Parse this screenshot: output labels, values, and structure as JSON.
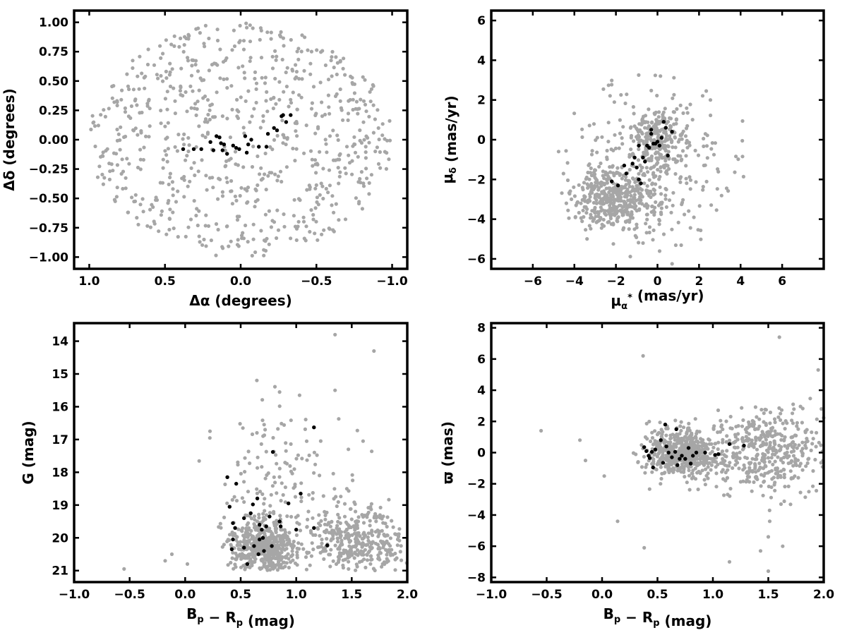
{
  "colors": {
    "background": "#ffffff",
    "field_points": "#a6a6a6",
    "members": "#000000",
    "axes": "#000000"
  },
  "chart_data": [
    {
      "id": "sky",
      "type": "scatter",
      "xlabel": "Δα (degrees)",
      "ylabel": "Δδ (degrees)",
      "xlim": [
        1.1,
        -1.1
      ],
      "ylim": [
        -1.1,
        1.1
      ],
      "x_inverted": true,
      "xticks": [
        1.0,
        0.5,
        0.0,
        -0.5,
        -1.0
      ],
      "xtick_labels": [
        "1.0",
        "0.5",
        "0.0",
        "−0.5",
        "−1.0"
      ],
      "yticks": [
        -1.0,
        -0.75,
        -0.5,
        -0.25,
        0.0,
        0.25,
        0.5,
        0.75,
        1.0
      ],
      "ytick_labels": [
        "−1.00",
        "−0.75",
        "−0.50",
        "−0.25",
        "0.00",
        "0.25",
        "0.50",
        "0.75",
        "1.00"
      ],
      "grid": false,
      "background_field": {
        "color": "#a6a6a6",
        "count": 750,
        "distribution": "uniform disk",
        "center": [
          0.0,
          0.0
        ],
        "radius": 1.0
      },
      "members": {
        "color": "#000000",
        "points": [
          [
            0.38,
            -0.08
          ],
          [
            0.31,
            -0.08
          ],
          [
            0.26,
            -0.08
          ],
          [
            0.2,
            -0.02
          ],
          [
            0.18,
            -0.09
          ],
          [
            0.16,
            0.03
          ],
          [
            0.14,
            0.02
          ],
          [
            0.13,
            -0.03
          ],
          [
            0.12,
            -0.09
          ],
          [
            0.11,
            -0.04
          ],
          [
            0.09,
            -0.12
          ],
          [
            0.05,
            -0.05
          ],
          [
            0.03,
            -0.07
          ],
          [
            0.01,
            -0.08
          ],
          [
            -0.03,
            0.03
          ],
          [
            -0.05,
            -0.04
          ],
          [
            -0.07,
            0.0
          ],
          [
            -0.12,
            -0.06
          ],
          [
            -0.04,
            -0.11
          ],
          [
            -0.17,
            -0.06
          ],
          [
            -0.22,
            0.1
          ],
          [
            -0.24,
            0.08
          ],
          [
            -0.27,
            0.2
          ],
          [
            -0.28,
            0.21
          ],
          [
            -0.3,
            0.15
          ],
          [
            -0.33,
            0.21
          ],
          [
            -0.18,
            0.05
          ]
        ]
      }
    },
    {
      "id": "proper-motion",
      "type": "scatter",
      "xlabel": "μα* (mas/yr)",
      "ylabel": "μδ (mas/yr)",
      "xlim": [
        -8,
        8
      ],
      "ylim": [
        -6.5,
        6.5
      ],
      "xticks": [
        -6,
        -4,
        -2,
        0,
        2,
        4,
        6
      ],
      "xtick_labels": [
        "−6",
        "−4",
        "−2",
        "0",
        "2",
        "4",
        "6"
      ],
      "yticks": [
        -6,
        -4,
        -2,
        0,
        2,
        4,
        6
      ],
      "ytick_labels": [
        "−6",
        "−4",
        "−2",
        "0",
        "2",
        "4",
        "6"
      ],
      "grid": false,
      "background_field": {
        "color": "#a6a6a6",
        "count": 900,
        "distribution": "two overlapping clumps plus diffuse halo",
        "clumps": [
          {
            "center": [
              -2.0,
              -3.0
            ],
            "spread": [
              1.0,
              0.8
            ],
            "weight": 0.45
          },
          {
            "center": [
              0.0,
              0.0
            ],
            "spread": [
              0.6,
              0.7
            ],
            "weight": 0.25
          },
          {
            "center": [
              -0.5,
              -1.5
            ],
            "spread": [
              2.2,
              2.2
            ],
            "weight": 0.3
          }
        ]
      },
      "members": {
        "color": "#000000",
        "points": [
          [
            -2.2,
            -2.1
          ],
          [
            -1.9,
            -2.3
          ],
          [
            -1.6,
            -1.3
          ],
          [
            -1.5,
            -1.7
          ],
          [
            -1.2,
            -1.2
          ],
          [
            -1.1,
            -0.9
          ],
          [
            -1.0,
            -1.4
          ],
          [
            -0.9,
            -0.3
          ],
          [
            -0.9,
            -2.0
          ],
          [
            -0.8,
            -2.2
          ],
          [
            -0.7,
            -0.9
          ],
          [
            -0.6,
            -1.1
          ],
          [
            -0.5,
            -0.3
          ],
          [
            -0.4,
            -0.4
          ],
          [
            -0.3,
            0.5
          ],
          [
            -0.3,
            0.3
          ],
          [
            -0.2,
            -0.2
          ],
          [
            -0.1,
            -0.2
          ],
          [
            0.0,
            -0.1
          ],
          [
            0.1,
            -0.3
          ],
          [
            0.2,
            0.1
          ],
          [
            0.3,
            0.9
          ],
          [
            0.4,
            0.6
          ],
          [
            0.5,
            -0.8
          ],
          [
            0.7,
            0.4
          ]
        ]
      }
    },
    {
      "id": "cmd",
      "type": "scatter",
      "xlabel": "Bp − Rp (mag)",
      "ylabel": "G (mag)",
      "xlim": [
        -1.0,
        2.0
      ],
      "ylim": [
        21.35,
        13.45
      ],
      "y_inverted": true,
      "xticks": [
        -1.0,
        -0.5,
        0.0,
        0.5,
        1.0,
        1.5,
        2.0
      ],
      "xtick_labels": [
        "−1.0",
        "−0.5",
        "0.0",
        "0.5",
        "1.0",
        "1.5",
        "2.0"
      ],
      "yticks": [
        14,
        15,
        16,
        17,
        18,
        19,
        20,
        21
      ],
      "ytick_labels": [
        "14",
        "15",
        "16",
        "17",
        "18",
        "19",
        "20",
        "21"
      ],
      "grid": false,
      "background_field": {
        "color": "#a6a6a6",
        "count": 1000,
        "distribution": "red clump near Bp−Rp 0.6–0.9, G 19.5–21 plus red sequence to 2.0",
        "clumps": [
          {
            "center": [
              0.7,
              20.3
            ],
            "spread": [
              0.15,
              0.45
            ],
            "weight": 0.5
          },
          {
            "center": [
              1.55,
              20.1
            ],
            "spread": [
              0.25,
              0.55
            ],
            "weight": 0.35
          },
          {
            "center": [
              0.9,
              18.3
            ],
            "spread": [
              0.35,
              1.2
            ],
            "weight": 0.15
          }
        ],
        "outliers": [
          [
            -0.55,
            20.95
          ],
          [
            -0.18,
            20.7
          ],
          [
            -0.12,
            20.5
          ],
          [
            0.02,
            20.8
          ],
          [
            1.35,
            13.8
          ],
          [
            1.7,
            14.3
          ],
          [
            1.35,
            15.5
          ],
          [
            1.03,
            15.65
          ],
          [
            0.85,
            15.55
          ],
          [
            0.52,
            16.65
          ],
          [
            0.72,
            16.7
          ]
        ]
      },
      "members": {
        "color": "#000000",
        "points": [
          [
            0.38,
            18.15
          ],
          [
            0.4,
            19.05
          ],
          [
            0.42,
            20.35
          ],
          [
            0.43,
            20.05
          ],
          [
            0.43,
            19.55
          ],
          [
            0.45,
            19.7
          ],
          [
            0.46,
            18.35
          ],
          [
            0.53,
            20.3
          ],
          [
            0.53,
            19.4
          ],
          [
            0.56,
            20.8
          ],
          [
            0.59,
            19.25
          ],
          [
            0.61,
            18.98
          ],
          [
            0.62,
            20.25
          ],
          [
            0.65,
            18.8
          ],
          [
            0.66,
            20.5
          ],
          [
            0.67,
            19.6
          ],
          [
            0.67,
            20.05
          ],
          [
            0.69,
            19.75
          ],
          [
            0.7,
            20.0
          ],
          [
            0.71,
            20.4
          ],
          [
            0.73,
            19.65
          ],
          [
            0.76,
            19.35
          ],
          [
            0.78,
            20.25
          ],
          [
            0.79,
            17.38
          ],
          [
            0.85,
            19.5
          ],
          [
            0.86,
            19.65
          ],
          [
            0.93,
            18.95
          ],
          [
            1.0,
            19.75
          ],
          [
            1.04,
            18.65
          ],
          [
            1.16,
            19.7
          ],
          [
            1.16,
            16.63
          ],
          [
            1.28,
            20.23
          ]
        ]
      }
    },
    {
      "id": "parallax",
      "type": "scatter",
      "xlabel": "Bp − Rp (mag)",
      "ylabel": "ϖ (mas)",
      "xlim": [
        -1.0,
        2.0
      ],
      "ylim": [
        -8.3,
        8.3
      ],
      "xticks": [
        -1.0,
        -0.5,
        0.0,
        0.5,
        1.0,
        1.5,
        2.0
      ],
      "xtick_labels": [
        "−1.0",
        "−0.5",
        "0.0",
        "0.5",
        "1.0",
        "1.5",
        "2.0"
      ],
      "yticks": [
        -8,
        -6,
        -4,
        -2,
        0,
        2,
        4,
        6,
        8
      ],
      "ytick_labels": [
        "−8",
        "−6",
        "−4",
        "−2",
        "0",
        "2",
        "4",
        "6",
        "8"
      ],
      "grid": false,
      "background_field": {
        "color": "#a6a6a6",
        "count": 1000,
        "distribution": "horizontal band around ϖ 0 from Bp−Rp 0.2 to 2.0, widening toward red",
        "clumps": [
          {
            "center": [
              0.72,
              0.0
            ],
            "spread": [
              0.16,
              0.75
            ],
            "weight": 0.55
          },
          {
            "center": [
              1.5,
              0.1
            ],
            "spread": [
              0.28,
              1.4
            ],
            "weight": 0.45
          }
        ],
        "outliers": [
          [
            -0.55,
            1.4
          ],
          [
            -0.2,
            0.8
          ],
          [
            -0.15,
            -0.5
          ],
          [
            0.02,
            -1.5
          ],
          [
            0.14,
            -4.4
          ],
          [
            0.37,
            6.2
          ],
          [
            0.38,
            -6.1
          ],
          [
            1.15,
            -7.0
          ],
          [
            1.5,
            -7.6
          ],
          [
            1.6,
            7.4
          ],
          [
            1.95,
            5.3
          ],
          [
            1.5,
            -5.4
          ],
          [
            1.43,
            -6.3
          ],
          [
            1.63,
            -6.0
          ]
        ]
      },
      "members": {
        "color": "#000000",
        "points": [
          [
            0.38,
            0.35
          ],
          [
            0.4,
            0.1
          ],
          [
            0.42,
            -0.2
          ],
          [
            0.43,
            -0.35
          ],
          [
            0.45,
            0.05
          ],
          [
            0.46,
            -0.95
          ],
          [
            0.48,
            0.2
          ],
          [
            0.53,
            0.8
          ],
          [
            0.55,
            -0.65
          ],
          [
            0.57,
            1.8
          ],
          [
            0.58,
            0.4
          ],
          [
            0.6,
            0.0
          ],
          [
            0.63,
            -0.3
          ],
          [
            0.66,
            0.05
          ],
          [
            0.67,
            1.5
          ],
          [
            0.68,
            -0.8
          ],
          [
            0.7,
            -0.4
          ],
          [
            0.72,
            -0.2
          ],
          [
            0.75,
            -0.4
          ],
          [
            0.78,
            0.3
          ],
          [
            0.8,
            -0.7
          ],
          [
            0.82,
            -0.2
          ],
          [
            0.85,
            0.0
          ],
          [
            0.93,
            0.0
          ],
          [
            1.02,
            -0.15
          ],
          [
            1.05,
            -0.1
          ],
          [
            1.15,
            0.55
          ],
          [
            1.28,
            0.45
          ]
        ]
      }
    }
  ]
}
